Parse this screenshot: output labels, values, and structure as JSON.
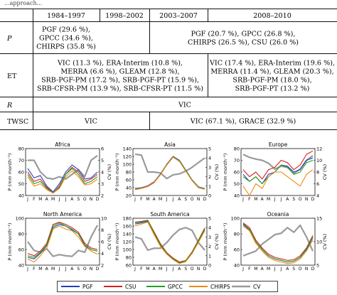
{
  "caption": "...approach...",
  "table": {
    "header": [
      "",
      "1984–1997",
      "1998–2002",
      "2003–2007",
      "2008–2010"
    ],
    "rows": [
      {
        "label": "P",
        "label_italic": true,
        "blocks": [
          {
            "span": "1984-1997",
            "lines": [
              "PGF (29.6 %),",
              "GPCC (34.6 %),",
              "CHIRPS (35.8 %)"
            ]
          },
          {
            "span": "2003-2010",
            "lines": [
              "PGF (20.7 %), GPCC (26.8 %),",
              "CHIRPS (26.5 %), CSU (26.0 %)"
            ]
          }
        ]
      },
      {
        "label": "ET",
        "label_italic": false,
        "blocks": [
          {
            "span": "1984-2007",
            "lines": [
              "VIC (11.3 %), ERA-Interim (10.8 %),",
              "MERRA (6.6 %), GLEAM (12.8 %),",
              "SRB-PGF-PM (17.2 %), SRB-PGF-PT (15.9 %),",
              "SRB-CFSR-PM (13.9 %), SRB-CFSR-PT (11.5 %)"
            ]
          },
          {
            "span": "2008-2010",
            "lines": [
              "VIC (17.4 %), ERA-Interim (19.6 %),",
              "MERRA (11.4 %), GLEAM (20.3 %),",
              "SRB-PGF-PM (18.0 %),",
              "SRB-PGF-PT (13.2 %)"
            ]
          }
        ]
      },
      {
        "label": "R",
        "label_italic": true,
        "blocks": [
          {
            "span": "1984-2010",
            "lines": [
              "VIC"
            ]
          }
        ]
      },
      {
        "label": "TWSC",
        "label_italic": false,
        "blocks": [
          {
            "span": "1984-2002",
            "lines": [
              "VIC"
            ]
          },
          {
            "span": "2003-2010",
            "lines": [
              "VIC (67.1 %), GRACE (32.9 %)"
            ]
          }
        ]
      }
    ]
  },
  "chart_data": {
    "type": "line",
    "x": [
      "J",
      "F",
      "M",
      "A",
      "M",
      "J",
      "J",
      "A",
      "S",
      "O",
      "N",
      "D"
    ],
    "ylabel": "P (mm month⁻¹)",
    "ylabel_right": "CV (%)",
    "legend": [
      "PGF",
      "CSU",
      "GPCC",
      "CHIRPS",
      "CV"
    ],
    "colors": {
      "PGF": "#1f3fbf",
      "CSU": "#d62020",
      "GPCC": "#22a022",
      "CHIRPS": "#f08a10",
      "CV": "#9a9a9a"
    },
    "panels": [
      {
        "title": "Africa",
        "ylim": [
          40,
          80
        ],
        "yticks": [
          40,
          50,
          60,
          70,
          80
        ],
        "y2lim": [
          2,
          6
        ],
        "y2ticks": [
          2,
          3,
          4,
          5,
          6
        ],
        "series": {
          "PGF": [
            63,
            55,
            57,
            48,
            43,
            50,
            60,
            66,
            62,
            54,
            55,
            60
          ],
          "CSU": [
            60,
            52,
            54,
            47,
            42,
            48,
            58,
            64,
            60,
            52,
            54,
            58
          ],
          "GPCC": [
            58,
            50,
            52,
            46,
            42,
            47,
            58,
            63,
            58,
            50,
            52,
            56
          ],
          "CHIRPS": [
            56,
            48,
            50,
            45,
            42,
            46,
            56,
            61,
            56,
            49,
            50,
            54
          ],
          "CV": [
            5,
            5,
            4,
            3.5,
            3.4,
            3.6,
            3.4,
            3.8,
            4.2,
            3.6,
            5,
            5.4
          ]
        }
      },
      {
        "title": "Asia",
        "ylim": [
          20,
          140
        ],
        "yticks": [
          20,
          40,
          60,
          80,
          100,
          120,
          140
        ],
        "y2lim": [
          0,
          5
        ],
        "y2ticks": [
          0,
          1,
          2,
          3,
          4,
          5
        ],
        "series": {
          "PGF": [
            38,
            40,
            45,
            55,
            75,
            100,
            120,
            110,
            85,
            60,
            42,
            38
          ],
          "CSU": [
            35,
            38,
            43,
            53,
            73,
            98,
            118,
            108,
            83,
            58,
            40,
            36
          ],
          "GPCC": [
            37,
            39,
            44,
            54,
            74,
            99,
            119,
            109,
            84,
            59,
            41,
            37
          ],
          "CHIRPS": [
            36,
            38,
            44,
            54,
            73,
            98,
            118,
            107,
            82,
            58,
            40,
            36
          ],
          "CV": [
            4.4,
            4.3,
            2.5,
            2.5,
            2.4,
            1.8,
            2.2,
            2.3,
            2.6,
            3.0,
            3.5,
            4.0
          ]
        }
      },
      {
        "title": "Europe",
        "ylim": [
          40,
          80
        ],
        "yticks": [
          40,
          50,
          60,
          70,
          80
        ],
        "y2lim": [
          4,
          12
        ],
        "y2ticks": [
          4,
          6,
          8,
          10,
          12
        ],
        "series": {
          "PGF": [
            58,
            52,
            56,
            50,
            58,
            60,
            66,
            65,
            60,
            62,
            70,
            72
          ],
          "CSU": [
            62,
            56,
            60,
            54,
            62,
            64,
            70,
            68,
            62,
            66,
            75,
            78
          ],
          "GPCC": [
            56,
            52,
            56,
            50,
            56,
            60,
            66,
            64,
            58,
            60,
            68,
            70
          ],
          "CHIRPS": [
            48,
            40,
            50,
            46,
            56,
            60,
            60,
            56,
            52,
            48,
            58,
            62
          ],
          "CV": [
            11,
            10.5,
            10.2,
            10,
            9.5,
            8.5,
            9,
            8.8,
            7.8,
            8.5,
            10,
            10.8
          ]
        }
      },
      {
        "title": "North America",
        "ylim": [
          40,
          100
        ],
        "yticks": [
          40,
          60,
          80,
          100
        ],
        "y2lim": [
          2,
          10
        ],
        "y2ticks": [
          2,
          4,
          6,
          8,
          10
        ],
        "series": {
          "PGF": [
            50,
            48,
            55,
            65,
            88,
            92,
            90,
            85,
            80,
            65,
            60,
            58
          ],
          "CSU": [
            55,
            52,
            58,
            68,
            92,
            95,
            92,
            88,
            82,
            68,
            62,
            60
          ],
          "GPCC": [
            52,
            50,
            56,
            66,
            90,
            94,
            90,
            86,
            80,
            66,
            60,
            58
          ],
          "CHIRPS": [
            48,
            44,
            52,
            62,
            86,
            90,
            86,
            84,
            76,
            64,
            58,
            54
          ],
          "CV": [
            6,
            4.5,
            4.2,
            4.8,
            3.5,
            3.8,
            3.6,
            3.5,
            4.5,
            4.2,
            6.8,
            8.8
          ]
        }
      },
      {
        "title": "South America",
        "ylim": [
          60,
          180
        ],
        "yticks": [
          60,
          80,
          100,
          120,
          140,
          160,
          180
        ],
        "y2lim": [
          0,
          5
        ],
        "y2ticks": [
          0,
          1,
          2,
          3,
          4,
          5
        ],
        "series": {
          "PGF": [
            165,
            168,
            172,
            140,
            110,
            90,
            75,
            65,
            70,
            90,
            120,
            150
          ],
          "CSU": [
            170,
            172,
            175,
            145,
            115,
            92,
            78,
            68,
            72,
            94,
            124,
            155
          ],
          "GPCC": [
            168,
            170,
            174,
            142,
            112,
            90,
            76,
            66,
            71,
            92,
            122,
            152
          ],
          "CHIRPS": [
            160,
            165,
            170,
            138,
            108,
            88,
            74,
            64,
            69,
            90,
            118,
            148
          ],
          "CV": [
            3,
            2.8,
            1.6,
            1.8,
            1.8,
            2.4,
            3.2,
            3.8,
            4.0,
            3.7,
            2.4,
            1.6
          ]
        }
      },
      {
        "title": "Oceania",
        "ylim": [
          40,
          100
        ],
        "yticks": [
          40,
          60,
          80,
          100
        ],
        "y2lim": [
          5,
          15
        ],
        "y2ticks": [
          5,
          10,
          15
        ],
        "series": {
          "PGF": [
            92,
            85,
            70,
            60,
            52,
            48,
            46,
            44,
            45,
            50,
            60,
            75
          ],
          "CSU": [
            94,
            88,
            72,
            62,
            54,
            50,
            48,
            46,
            47,
            52,
            62,
            78
          ],
          "GPCC": [
            93,
            86,
            70,
            60,
            52,
            48,
            46,
            44,
            45,
            50,
            61,
            76
          ],
          "CHIRPS": [
            90,
            84,
            68,
            58,
            50,
            46,
            44,
            42,
            43,
            48,
            58,
            72
          ],
          "CV": [
            7,
            7.5,
            8,
            9.5,
            10.5,
            11.5,
            11.8,
            13,
            12,
            13.5,
            11,
            8
          ]
        }
      }
    ]
  }
}
